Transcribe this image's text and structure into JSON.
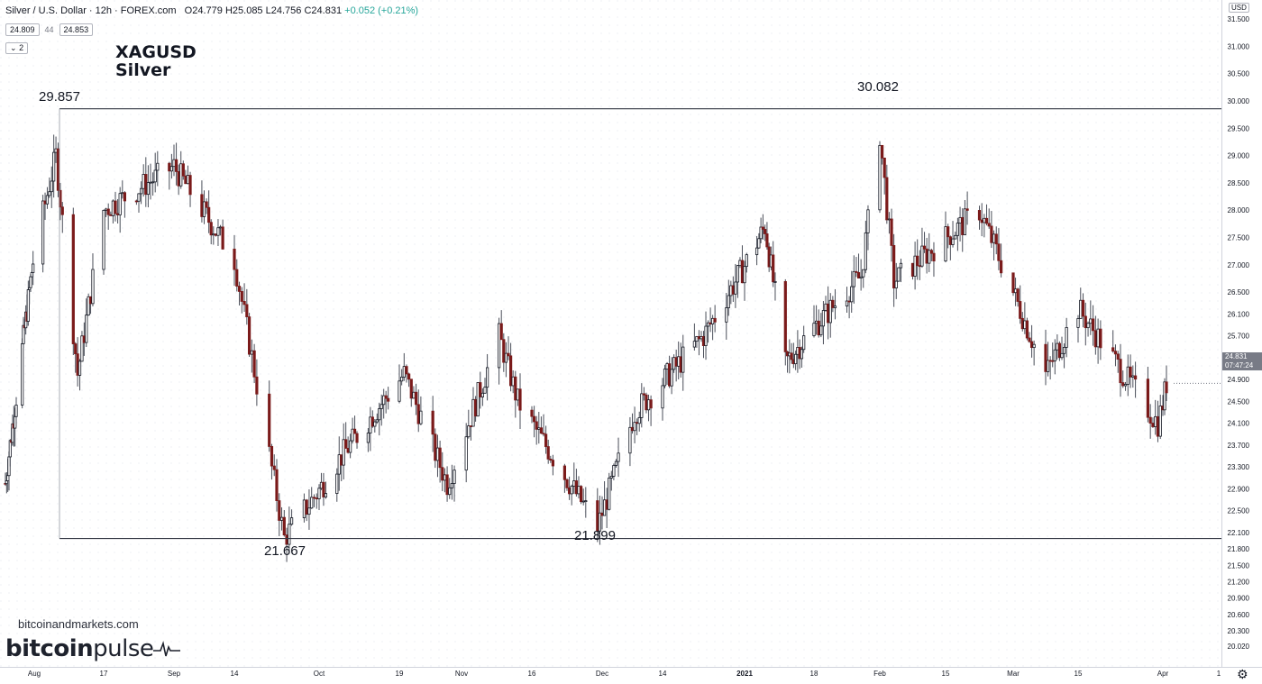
{
  "header": {
    "symbol_title": "Silver / U.S. Dollar · 12h · FOREX.com",
    "open_label": "O",
    "open_value": "24.779",
    "high_label": "H",
    "high_value": "25.085",
    "low_label": "L",
    "low_value": "24.756",
    "close_label": "C",
    "close_value": "24.831",
    "change": "+0.052 (+0.21%)"
  },
  "quote": {
    "bid": "24.809",
    "spread": "44",
    "ask": "24.853"
  },
  "indicators_toggle": "2",
  "annotation": {
    "line1": "XAGUSD",
    "line2": "Silver"
  },
  "watermark": {
    "site": "bitcoinandmarkets.com",
    "logo_bold": "bitcoin",
    "logo_regular": "pulse"
  },
  "price_axis": {
    "currency": "USD",
    "last_price": "24.831",
    "countdown": "07:47:24"
  },
  "colors": {
    "up": "#131722",
    "down": "#7b1b1b",
    "level_line": "#363a45",
    "background": "#ffffff"
  },
  "chart_data": {
    "type": "candlestick",
    "timeframe": "12h",
    "y_axis": {
      "ticks": [
        "31.900",
        "31.500",
        "31.000",
        "30.500",
        "30.000",
        "29.500",
        "29.000",
        "28.500",
        "28.000",
        "27.500",
        "27.000",
        "26.500",
        "26.100",
        "25.700",
        "25.300",
        "24.900",
        "24.500",
        "24.100",
        "23.700",
        "23.300",
        "22.900",
        "22.500",
        "22.100",
        "21.800",
        "21.500",
        "21.200",
        "20.900",
        "20.600",
        "20.300",
        "20.020"
      ],
      "range": [
        19.9,
        32.2
      ]
    },
    "x_axis": {
      "ticks": [
        "Aug",
        "17",
        "Sep",
        "14",
        "Oct",
        "19",
        "Nov",
        "16",
        "Dec",
        "14",
        "2021",
        "18",
        "Feb",
        "15",
        "Mar",
        "15",
        "Apr",
        "1"
      ]
    },
    "horizontal_levels": [
      29.857,
      21.99
    ],
    "annotations": [
      {
        "label": "29.857",
        "value": 29.857
      },
      {
        "label": "30.082",
        "value": 30.082
      },
      {
        "label": "21.667",
        "value": 21.667
      },
      {
        "label": "21.899",
        "value": 21.899
      }
    ],
    "key_points": [
      {
        "date": "2020-07-20",
        "close": 23.0
      },
      {
        "date": "2020-08-06",
        "close": 29.0
      },
      {
        "date": "2020-08-11",
        "close": 25.0
      },
      {
        "date": "2020-08-17",
        "close": 28.0
      },
      {
        "date": "2020-09-01",
        "close": 28.8
      },
      {
        "date": "2020-09-14",
        "close": 27.1
      },
      {
        "date": "2020-09-24",
        "close": 22.0
      },
      {
        "date": "2020-10-06",
        "close": 23.5
      },
      {
        "date": "2020-10-20",
        "close": 25.0
      },
      {
        "date": "2020-10-29",
        "close": 23.0
      },
      {
        "date": "2020-11-09",
        "close": 25.7
      },
      {
        "date": "2020-11-13",
        "close": 24.5
      },
      {
        "date": "2020-11-30",
        "close": 22.2
      },
      {
        "date": "2020-12-08",
        "close": 24.3
      },
      {
        "date": "2020-12-23",
        "close": 25.7
      },
      {
        "date": "2021-01-06",
        "close": 27.7
      },
      {
        "date": "2021-01-11",
        "close": 25.2
      },
      {
        "date": "2021-01-28",
        "close": 26.8
      },
      {
        "date": "2021-02-01",
        "close": 29.4
      },
      {
        "date": "2021-02-04",
        "close": 26.7
      },
      {
        "date": "2021-02-22",
        "close": 28.0
      },
      {
        "date": "2021-03-08",
        "close": 25.0
      },
      {
        "date": "2021-03-15",
        "close": 26.2
      },
      {
        "date": "2021-03-31",
        "close": 24.1
      },
      {
        "date": "2021-04-02",
        "close": 24.831
      }
    ]
  }
}
